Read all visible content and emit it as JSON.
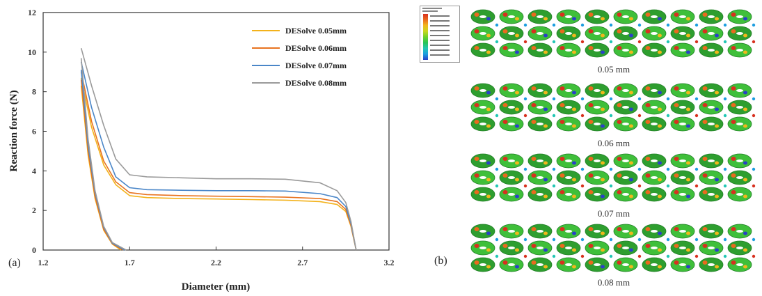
{
  "panel_a_label": "(a)",
  "panel_b_label": "(b)",
  "chart_data": {
    "type": "line",
    "xlabel": "Diameter (mm)",
    "ylabel": "Reaction force (N)",
    "xlim": [
      1.2,
      3.2
    ],
    "ylim": [
      0,
      12
    ],
    "xticks": [
      "1.2",
      "1.7",
      "2.2",
      "2.7",
      "3.2"
    ],
    "yticks": [
      "0",
      "2",
      "4",
      "6",
      "8",
      "10",
      "12"
    ],
    "grid": false,
    "legend_position": "top-right",
    "series": [
      {
        "name": "DESolve 0.05mm",
        "color": "#f3b21b",
        "loading": [
          [
            1.42,
            8.7
          ],
          [
            1.48,
            6.2
          ],
          [
            1.55,
            4.3
          ],
          [
            1.62,
            3.3
          ],
          [
            1.7,
            2.75
          ],
          [
            1.8,
            2.65
          ],
          [
            2.0,
            2.6
          ],
          [
            2.2,
            2.58
          ],
          [
            2.4,
            2.55
          ],
          [
            2.6,
            2.52
          ],
          [
            2.8,
            2.45
          ],
          [
            2.9,
            2.3
          ],
          [
            2.95,
            1.95
          ],
          [
            2.98,
            1.2
          ],
          [
            3.01,
            0
          ]
        ],
        "unloading": [
          [
            1.42,
            8.3
          ],
          [
            1.46,
            4.8
          ],
          [
            1.5,
            2.6
          ],
          [
            1.55,
            1.0
          ],
          [
            1.6,
            0.3
          ],
          [
            1.65,
            0
          ]
        ]
      },
      {
        "name": "DESolve 0.06mm",
        "color": "#e8731f",
        "loading": [
          [
            1.42,
            9.0
          ],
          [
            1.48,
            6.5
          ],
          [
            1.55,
            4.5
          ],
          [
            1.62,
            3.45
          ],
          [
            1.7,
            2.9
          ],
          [
            1.8,
            2.8
          ],
          [
            2.0,
            2.75
          ],
          [
            2.2,
            2.72
          ],
          [
            2.4,
            2.7
          ],
          [
            2.6,
            2.67
          ],
          [
            2.8,
            2.6
          ],
          [
            2.9,
            2.45
          ],
          [
            2.95,
            2.05
          ],
          [
            2.98,
            1.25
          ],
          [
            3.01,
            0
          ]
        ],
        "unloading": [
          [
            1.42,
            8.6
          ],
          [
            1.46,
            5.0
          ],
          [
            1.5,
            2.7
          ],
          [
            1.55,
            1.05
          ],
          [
            1.6,
            0.32
          ],
          [
            1.66,
            0
          ]
        ]
      },
      {
        "name": "DESolve 0.07mm",
        "color": "#4a86c8",
        "loading": [
          [
            1.42,
            9.5
          ],
          [
            1.48,
            7.2
          ],
          [
            1.55,
            5.2
          ],
          [
            1.62,
            3.7
          ],
          [
            1.7,
            3.15
          ],
          [
            1.8,
            3.05
          ],
          [
            2.0,
            3.02
          ],
          [
            2.2,
            3.0
          ],
          [
            2.4,
            3.0
          ],
          [
            2.6,
            2.98
          ],
          [
            2.8,
            2.85
          ],
          [
            2.9,
            2.65
          ],
          [
            2.95,
            2.2
          ],
          [
            2.98,
            1.35
          ],
          [
            3.01,
            0
          ]
        ],
        "unloading": [
          [
            1.42,
            9.1
          ],
          [
            1.46,
            5.3
          ],
          [
            1.5,
            2.9
          ],
          [
            1.55,
            1.15
          ],
          [
            1.6,
            0.35
          ],
          [
            1.67,
            0
          ]
        ]
      },
      {
        "name": "DESolve 0.08mm",
        "color": "#9a9a9a",
        "loading": [
          [
            1.42,
            10.2
          ],
          [
            1.48,
            8.3
          ],
          [
            1.55,
            6.3
          ],
          [
            1.62,
            4.6
          ],
          [
            1.7,
            3.8
          ],
          [
            1.8,
            3.7
          ],
          [
            2.0,
            3.65
          ],
          [
            2.2,
            3.6
          ],
          [
            2.4,
            3.6
          ],
          [
            2.6,
            3.58
          ],
          [
            2.8,
            3.4
          ],
          [
            2.9,
            3.0
          ],
          [
            2.95,
            2.4
          ],
          [
            2.98,
            1.45
          ],
          [
            3.01,
            0
          ]
        ],
        "unloading": [
          [
            1.42,
            9.7
          ],
          [
            1.46,
            5.6
          ],
          [
            1.5,
            3.0
          ],
          [
            1.55,
            1.2
          ],
          [
            1.6,
            0.38
          ],
          [
            1.68,
            0
          ]
        ]
      }
    ]
  },
  "fea_panel": {
    "captions": [
      "0.05 mm",
      "0.06 mm",
      "0.07 mm",
      "0.08 mm"
    ],
    "contour_colors": [
      "#2a3fc9",
      "#1d9de0",
      "#22c6b5",
      "#27c456",
      "#6fd22a",
      "#c8d81f",
      "#f1b71c",
      "#ea6a1e",
      "#d8301f"
    ]
  }
}
